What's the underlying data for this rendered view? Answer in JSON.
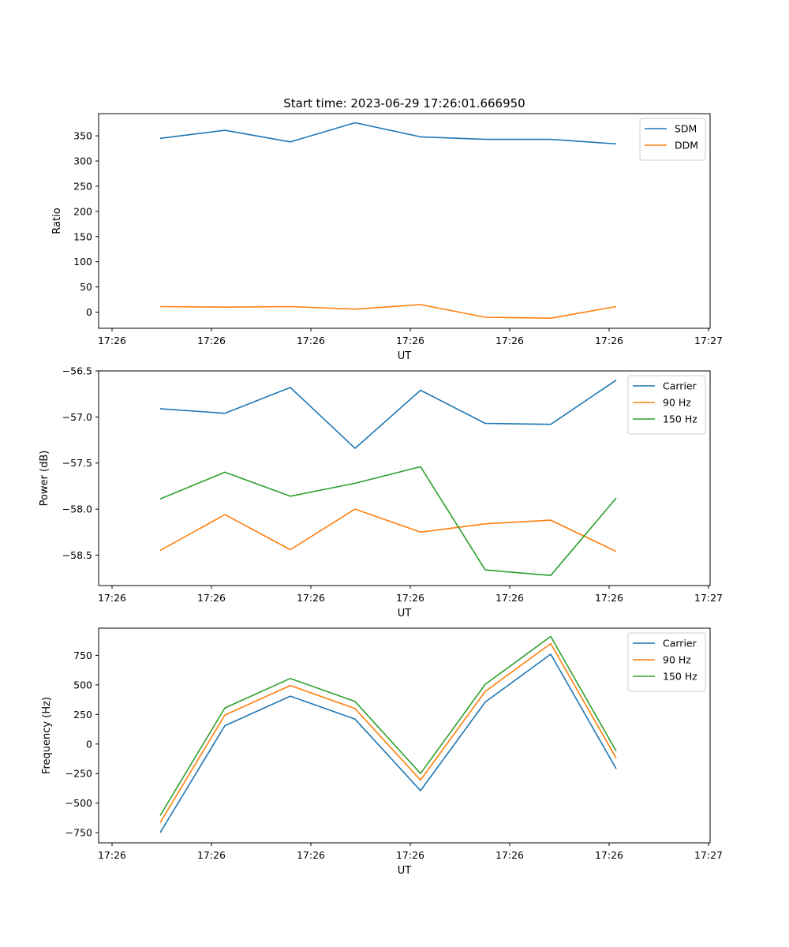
{
  "title": "Start time: 2023-06-29 17:26:01.666950",
  "chart_data": [
    {
      "type": "line",
      "xlabel": "UT",
      "ylabel": "Ratio",
      "x_tick_labels": [
        "17:26",
        "17:26",
        "17:26",
        "17:26",
        "17:26",
        "17:26",
        "17:26"
      ],
      "x_tick_labels_end": "17:27",
      "yticks": [
        0,
        50,
        100,
        150,
        200,
        250,
        300,
        350
      ],
      "ylim": [
        -32,
        394
      ],
      "legend": "top-right",
      "series": [
        {
          "name": "SDM",
          "color": "#1f77b4",
          "values": [
            345,
            361,
            338,
            376,
            348,
            343,
            343,
            334
          ]
        },
        {
          "name": "DDM",
          "color": "#ff7f0e",
          "values": [
            11,
            10,
            11,
            6,
            15,
            -10,
            -12,
            11
          ]
        }
      ]
    },
    {
      "type": "line",
      "xlabel": "UT",
      "ylabel": "Power (dB)",
      "x_tick_labels": [
        "17:26",
        "17:26",
        "17:26",
        "17:26",
        "17:26",
        "17:26",
        "17:26"
      ],
      "x_tick_labels_end": "17:27",
      "yticks": [
        -58.5,
        -58.0,
        -57.5,
        -57.0,
        -56.5
      ],
      "ytick_labels": [
        "−58.5",
        "−58.0",
        "−57.5",
        "−57.0",
        "−56.5"
      ],
      "ylim": [
        -58.83,
        -56.5
      ],
      "legend": "top-right",
      "series": [
        {
          "name": "Carrier",
          "color": "#1f77b4",
          "values": [
            -56.91,
            -56.96,
            -56.68,
            -57.34,
            -56.71,
            -57.07,
            -57.08,
            -56.6
          ]
        },
        {
          "name": "90 Hz",
          "color": "#ff7f0e",
          "values": [
            -58.45,
            -58.06,
            -58.44,
            -58.0,
            -58.25,
            -58.16,
            -58.12,
            -58.46
          ]
        },
        {
          "name": "150 Hz",
          "color": "#2ca02c",
          "values": [
            -57.89,
            -57.6,
            -57.86,
            -57.72,
            -57.54,
            -58.66,
            -58.72,
            -57.88
          ]
        }
      ]
    },
    {
      "type": "line",
      "xlabel": "UT",
      "ylabel": "Frequency (Hz)",
      "x_tick_labels": [
        "17:26",
        "17:26",
        "17:26",
        "17:26",
        "17:26",
        "17:26",
        "17:26"
      ],
      "x_tick_labels_end": "17:27",
      "yticks": [
        -750,
        -500,
        -250,
        0,
        250,
        500,
        750
      ],
      "ytick_labels": [
        "−750",
        "−500",
        "−250",
        "0",
        "250",
        "500",
        "750"
      ],
      "ylim": [
        -836,
        980
      ],
      "legend": "top-right",
      "series": [
        {
          "name": "Carrier",
          "color": "#1f77b4",
          "values": [
            -750,
            155,
            405,
            210,
            -395,
            355,
            760,
            -210
          ]
        },
        {
          "name": "90 Hz",
          "color": "#ff7f0e",
          "values": [
            -665,
            245,
            495,
            300,
            -305,
            445,
            850,
            -120
          ]
        },
        {
          "name": "150 Hz",
          "color": "#2ca02c",
          "values": [
            -605,
            305,
            555,
            360,
            -250,
            505,
            910,
            -60
          ]
        }
      ]
    }
  ]
}
